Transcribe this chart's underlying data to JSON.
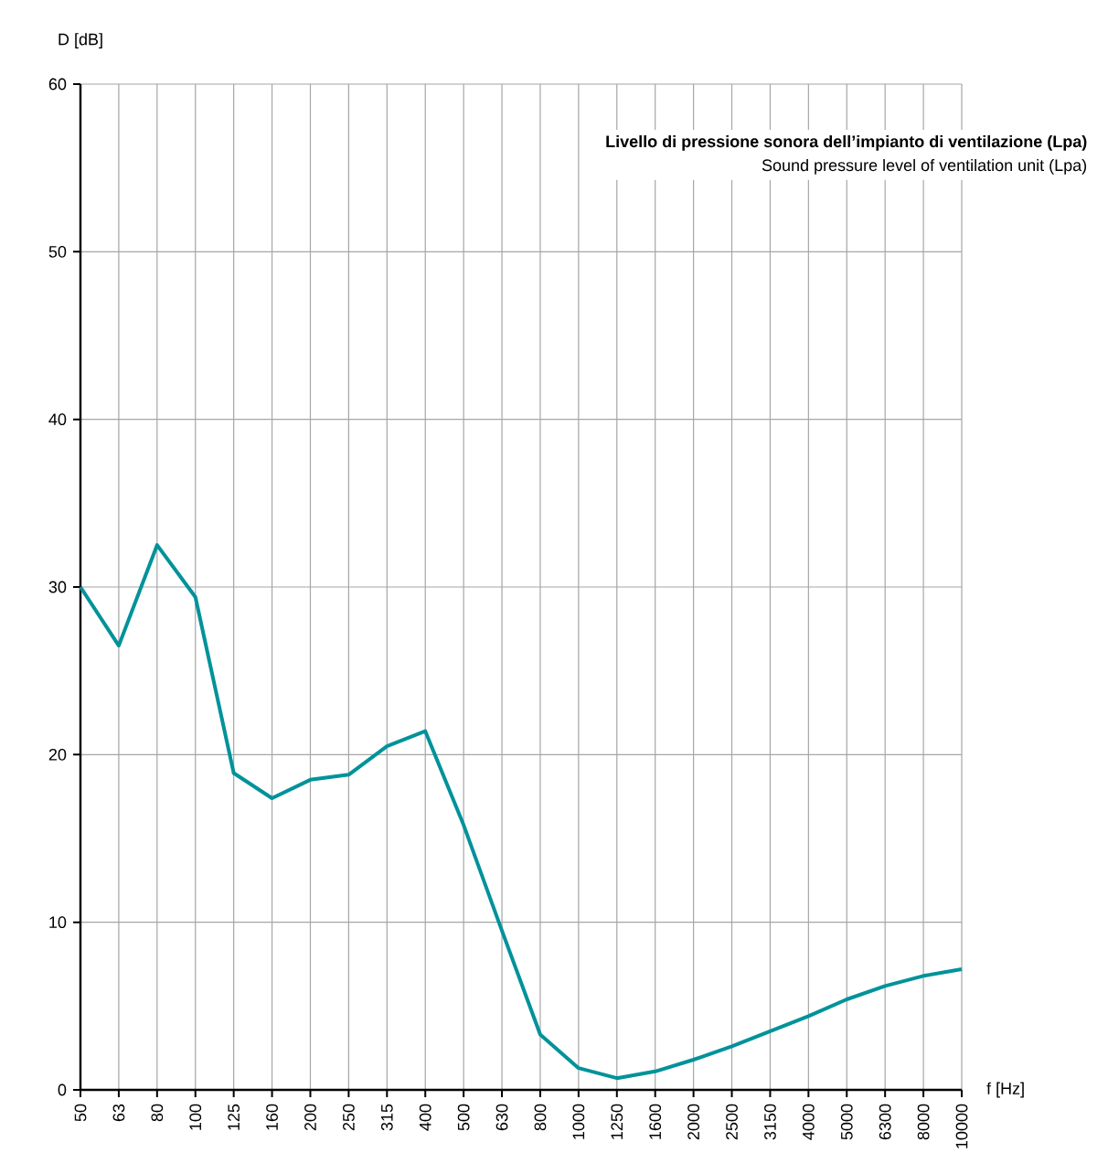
{
  "chart_data": {
    "type": "line",
    "title": "Livello di pressione sonora dell’impianto di ventilazione (Lpa)",
    "subtitle": "Sound pressure level of ventilation unit (Lpa)",
    "xlabel": "f [Hz]",
    "ylabel": "D [dB]",
    "categories": [
      "50",
      "63",
      "80",
      "100",
      "125",
      "160",
      "200",
      "250",
      "315",
      "400",
      "500",
      "630",
      "800",
      "1000",
      "1250",
      "1600",
      "2000",
      "2500",
      "3150",
      "4000",
      "5000",
      "6300",
      "8000",
      "10000"
    ],
    "values": [
      30,
      26.5,
      32.5,
      29.4,
      18.9,
      17.4,
      18.5,
      18.8,
      20.5,
      21.4,
      15.8,
      9.5,
      3.3,
      1.3,
      0.7,
      1.1,
      1.8,
      2.6,
      3.5,
      4.4,
      5.4,
      6.2,
      6.8,
      7.2
    ],
    "color": "#00929a",
    "ylim": [
      0,
      60
    ],
    "yticks": [
      0,
      10,
      20,
      30,
      40,
      50,
      60
    ],
    "grid": true
  }
}
